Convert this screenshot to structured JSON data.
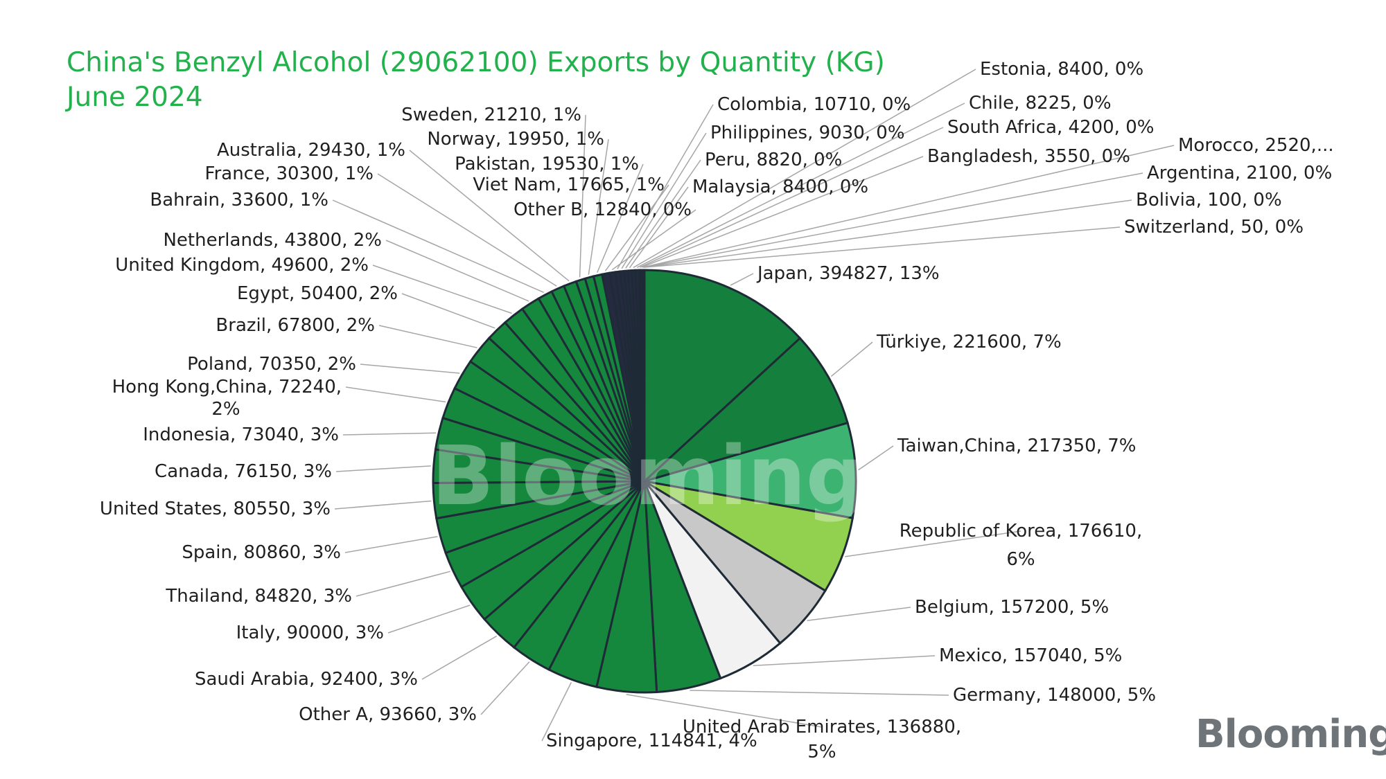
{
  "title": {
    "line1": "China's Benzyl Alcohol (29062100) Exports by Quantity (KG)",
    "line2": "June 2024"
  },
  "watermark": "Blooming",
  "brand_logo": "Blooming",
  "colors": {
    "title": "#22b14c",
    "japan": "#15803d",
    "turkiye": "#15803d",
    "taiwan": "#3cb371",
    "korea": "#92d050",
    "belgium": "#c8c8c8",
    "mexico": "#f2f2f2",
    "others": "#15883e",
    "smallest": "#262a40",
    "border": "#1f2a37",
    "leader": "#a6a6a6"
  },
  "chart_data": {
    "type": "pie",
    "title": "China's Benzyl Alcohol (29062100) Exports by Quantity (KG) June 2024",
    "unit": "KG",
    "slices": [
      {
        "name": "Japan",
        "value": 394827,
        "pct": "13%",
        "label": "Japan, 394827, 13%"
      },
      {
        "name": "Türkiye",
        "value": 221600,
        "pct": "7%",
        "label": "Türkiye, 221600, 7%"
      },
      {
        "name": "Taiwan,China",
        "value": 217350,
        "pct": "7%",
        "label": "Taiwan,China, 217350, 7%"
      },
      {
        "name": "Republic of Korea",
        "value": 176610,
        "pct": "6%",
        "label": "Republic of Korea, 176610, 6%"
      },
      {
        "name": "Belgium",
        "value": 157200,
        "pct": "5%",
        "label": "Belgium, 157200, 5%"
      },
      {
        "name": "Mexico",
        "value": 157040,
        "pct": "5%",
        "label": "Mexico, 157040, 5%"
      },
      {
        "name": "Germany",
        "value": 148000,
        "pct": "5%",
        "label": "Germany, 148000, 5%"
      },
      {
        "name": "United Arab Emirates",
        "value": 136880,
        "pct": "5%",
        "label": "United Arab Emirates, 136880, 5%"
      },
      {
        "name": "Singapore",
        "value": 114841,
        "pct": "4%",
        "label": "Singapore, 114841, 4%"
      },
      {
        "name": "Other A",
        "value": 93660,
        "pct": "3%",
        "label": "Other A, 93660, 3%"
      },
      {
        "name": "Saudi Arabia",
        "value": 92400,
        "pct": "3%",
        "label": "Saudi Arabia, 92400, 3%"
      },
      {
        "name": "Italy",
        "value": 90000,
        "pct": "3%",
        "label": "Italy, 90000, 3%"
      },
      {
        "name": "Thailand",
        "value": 84820,
        "pct": "3%",
        "label": "Thailand, 84820, 3%"
      },
      {
        "name": "Spain",
        "value": 80860,
        "pct": "3%",
        "label": "Spain, 80860, 3%"
      },
      {
        "name": "United States",
        "value": 80550,
        "pct": "3%",
        "label": "United States, 80550, 3%"
      },
      {
        "name": "Canada",
        "value": 76150,
        "pct": "3%",
        "label": "Canada, 76150, 3%"
      },
      {
        "name": "Indonesia",
        "value": 73040,
        "pct": "3%",
        "label": "Indonesia, 73040, 3%"
      },
      {
        "name": "Hong Kong,China",
        "value": 72240,
        "pct": "2%",
        "label": "Hong Kong,China, 72240, 2%"
      },
      {
        "name": "Poland",
        "value": 70350,
        "pct": "2%",
        "label": "Poland, 70350, 2%"
      },
      {
        "name": "Brazil",
        "value": 67800,
        "pct": "2%",
        "label": "Brazil, 67800, 2%"
      },
      {
        "name": "Egypt",
        "value": 50400,
        "pct": "2%",
        "label": "Egypt, 50400, 2%"
      },
      {
        "name": "United Kingdom",
        "value": 49600,
        "pct": "2%",
        "label": "United Kingdom, 49600, 2%"
      },
      {
        "name": "Netherlands",
        "value": 43800,
        "pct": "2%",
        "label": "Netherlands, 43800, 2%"
      },
      {
        "name": "Bahrain",
        "value": 33600,
        "pct": "1%",
        "label": "Bahrain, 33600, 1%"
      },
      {
        "name": "France",
        "value": 30300,
        "pct": "1%",
        "label": "France, 30300, 1%"
      },
      {
        "name": "Australia",
        "value": 29430,
        "pct": "1%",
        "label": "Australia, 29430, 1%"
      },
      {
        "name": "Sweden",
        "value": 21210,
        "pct": "1%",
        "label": "Sweden, 21210, 1%"
      },
      {
        "name": "Norway",
        "value": 19950,
        "pct": "1%",
        "label": "Norway, 19950, 1%"
      },
      {
        "name": "Pakistan",
        "value": 19530,
        "pct": "1%",
        "label": "Pakistan, 19530, 1%"
      },
      {
        "name": "Viet Nam",
        "value": 17665,
        "pct": "1%",
        "label": "Viet Nam, 17665, 1%"
      },
      {
        "name": "Other B",
        "value": 12840,
        "pct": "0%",
        "label": "Other B, 12840, 0%"
      },
      {
        "name": "Colombia",
        "value": 10710,
        "pct": "0%",
        "label": "Colombia, 10710, 0%"
      },
      {
        "name": "Philippines",
        "value": 9030,
        "pct": "0%",
        "label": "Philippines, 9030, 0%"
      },
      {
        "name": "Peru",
        "value": 8820,
        "pct": "0%",
        "label": "Peru, 8820, 0%"
      },
      {
        "name": "Malaysia",
        "value": 8400,
        "pct": "0%",
        "label": "Malaysia, 8400, 0%"
      },
      {
        "name": "Estonia",
        "value": 8400,
        "pct": "0%",
        "label": "Estonia, 8400, 0%"
      },
      {
        "name": "Chile",
        "value": 8225,
        "pct": "0%",
        "label": "Chile, 8225, 0%"
      },
      {
        "name": "South Africa",
        "value": 4200,
        "pct": "0%",
        "label": "South Africa, 4200, 0%"
      },
      {
        "name": "Bangladesh",
        "value": 3550,
        "pct": "0%",
        "label": "Bangladesh, 3550, 0%"
      },
      {
        "name": "Morocco",
        "value": 2520,
        "pct": "0%",
        "label": "Morocco, 2520,..."
      },
      {
        "name": "Argentina",
        "value": 2100,
        "pct": "0%",
        "label": "Argentina, 2100, 0%"
      },
      {
        "name": "Bolivia",
        "value": 100,
        "pct": "0%",
        "label": "Bolivia, 100, 0%"
      },
      {
        "name": "Switzerland",
        "value": 50,
        "pct": "0%",
        "label": "Switzerland, 50, 0%"
      }
    ]
  }
}
